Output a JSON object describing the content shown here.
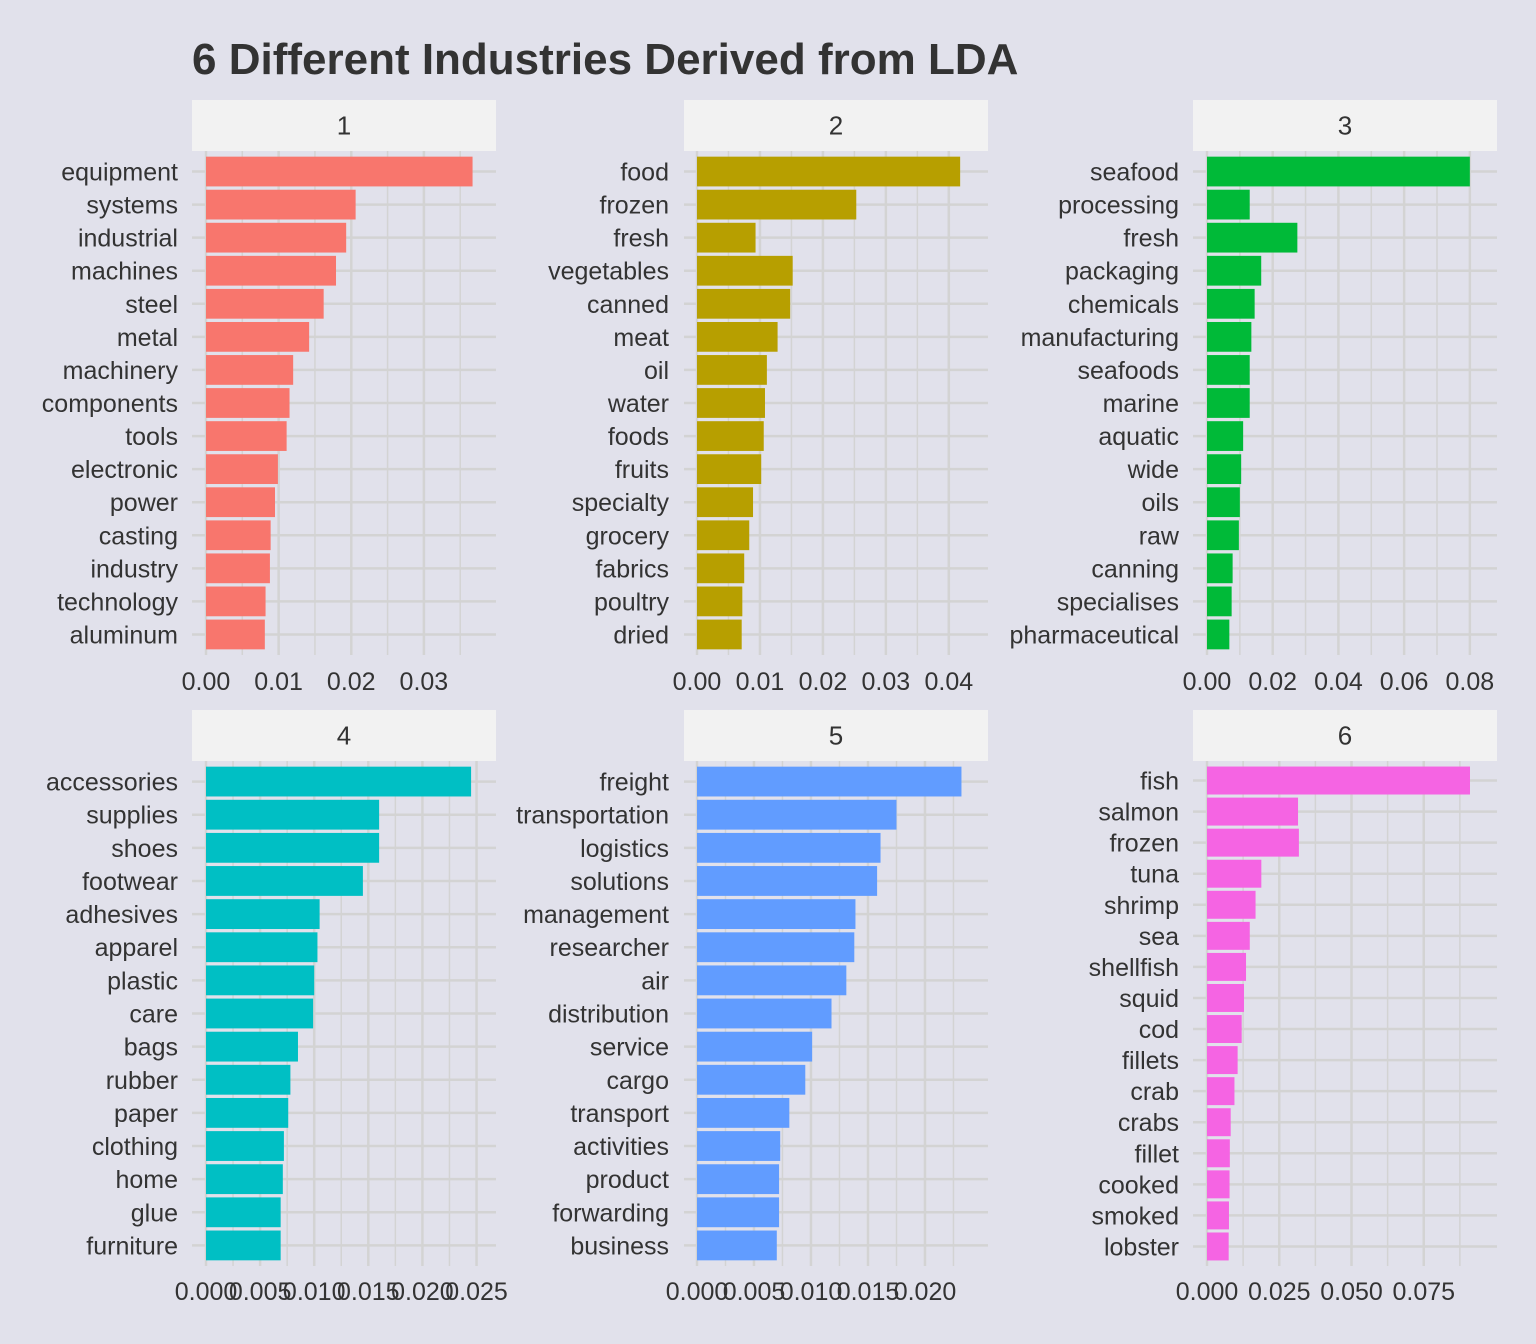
{
  "title": "6 Different Industries Derived from LDA",
  "colors": {
    "background": "#e1e1eb",
    "strip": "#f2f2f2",
    "grid": "#d3d3d3",
    "text": "#333333",
    "panels": [
      "#f8766d",
      "#b79f00",
      "#00ba38",
      "#00bfc4",
      "#619cff",
      "#f564e3"
    ]
  },
  "chart_data": {
    "type": "bar",
    "orientation": "horizontal",
    "title": "6 Different Industries Derived from LDA",
    "grid": true,
    "legend": "none",
    "panels": [
      {
        "label": "1",
        "categories": [
          "equipment",
          "systems",
          "industrial",
          "machines",
          "steel",
          "metal",
          "machinery",
          "components",
          "tools",
          "electronic",
          "power",
          "casting",
          "industry",
          "technology",
          "aluminum"
        ],
        "values": [
          0.0367,
          0.0206,
          0.0193,
          0.0179,
          0.0162,
          0.0142,
          0.012,
          0.0115,
          0.0111,
          0.0099,
          0.0095,
          0.0089,
          0.0088,
          0.0082,
          0.0081
        ],
        "xlim": [
          0,
          0.038
        ],
        "xticks": [
          0,
          0.01,
          0.02,
          0.03
        ],
        "xtick_labels": [
          "0.00",
          "0.01",
          "0.02",
          "0.03"
        ]
      },
      {
        "label": "2",
        "categories": [
          "food",
          "frozen",
          "fresh",
          "vegetables",
          "canned",
          "meat",
          "oil",
          "water",
          "foods",
          "fruits",
          "specialty",
          "grocery",
          "fabrics",
          "poultry",
          "dried"
        ],
        "values": [
          0.0418,
          0.0253,
          0.0093,
          0.0152,
          0.0148,
          0.0128,
          0.0111,
          0.0108,
          0.0106,
          0.0102,
          0.0089,
          0.0083,
          0.0075,
          0.0072,
          0.0071
        ],
        "xlim": [
          0,
          0.044
        ],
        "xticks": [
          0,
          0.01,
          0.02,
          0.03,
          0.04
        ],
        "xtick_labels": [
          "0.00",
          "0.01",
          "0.02",
          "0.03",
          "0.04"
        ]
      },
      {
        "label": "3",
        "categories": [
          "seafood",
          "processing",
          "fresh",
          "packaging",
          "chemicals",
          "manufacturing",
          "seafoods",
          "marine",
          "aquatic",
          "wide",
          "oils",
          "raw",
          "canning",
          "specialises",
          "pharmaceutical"
        ],
        "values": [
          0.08,
          0.013,
          0.0275,
          0.0165,
          0.0145,
          0.0135,
          0.013,
          0.013,
          0.011,
          0.0104,
          0.01,
          0.0097,
          0.0078,
          0.0075,
          0.0068
        ],
        "xlim": [
          0,
          0.084
        ],
        "xticks": [
          0,
          0.02,
          0.04,
          0.06,
          0.08
        ],
        "xtick_labels": [
          "0.00",
          "0.02",
          "0.04",
          "0.06",
          "0.08"
        ]
      },
      {
        "label": "4",
        "categories": [
          "accessories",
          "supplies",
          "shoes",
          "footwear",
          "adhesives",
          "apparel",
          "plastic",
          "care",
          "bags",
          "rubber",
          "paper",
          "clothing",
          "home",
          "glue",
          "furniture"
        ],
        "values": [
          0.0245,
          0.016,
          0.016,
          0.0145,
          0.0105,
          0.0103,
          0.01,
          0.0099,
          0.0085,
          0.0078,
          0.0076,
          0.0072,
          0.0071,
          0.0069,
          0.0069
        ],
        "xlim": [
          0,
          0.0256
        ],
        "xticks": [
          0,
          0.005,
          0.01,
          0.015,
          0.02,
          0.025
        ],
        "xtick_labels": [
          "0.000",
          "0.005",
          "0.010",
          "0.015",
          "0.020",
          "0.025"
        ]
      },
      {
        "label": "5",
        "categories": [
          "freight",
          "transportation",
          "logistics",
          "solutions",
          "management",
          "researcher",
          "air",
          "distribution",
          "service",
          "cargo",
          "transport",
          "activities",
          "product",
          "forwarding",
          "business"
        ],
        "values": [
          0.0232,
          0.0175,
          0.0161,
          0.0158,
          0.0139,
          0.0138,
          0.0131,
          0.0118,
          0.0101,
          0.0095,
          0.0081,
          0.0073,
          0.0072,
          0.0072,
          0.007
        ],
        "xlim": [
          0,
          0.0243
        ],
        "xticks": [
          0,
          0.005,
          0.01,
          0.015,
          0.02
        ],
        "xtick_labels": [
          "0.000",
          "0.005",
          "0.010",
          "0.015",
          "0.020"
        ]
      },
      {
        "label": "6",
        "categories": [
          "fish",
          "salmon",
          "frozen",
          "tuna",
          "shrimp",
          "sea",
          "shellfish",
          "squid",
          "cod",
          "fillets",
          "crab",
          "crabs",
          "fillet",
          "cooked",
          "smoked",
          "lobster"
        ],
        "values": [
          0.091,
          0.0315,
          0.0318,
          0.0188,
          0.0168,
          0.0148,
          0.0135,
          0.0128,
          0.012,
          0.0106,
          0.0095,
          0.0082,
          0.0079,
          0.0078,
          0.0076,
          0.0075
        ],
        "xlim": [
          0,
          0.0955
        ],
        "xticks": [
          0,
          0.025,
          0.05,
          0.075
        ],
        "xtick_labels": [
          "0.000",
          "0.025",
          "0.050",
          "0.075"
        ]
      }
    ]
  }
}
